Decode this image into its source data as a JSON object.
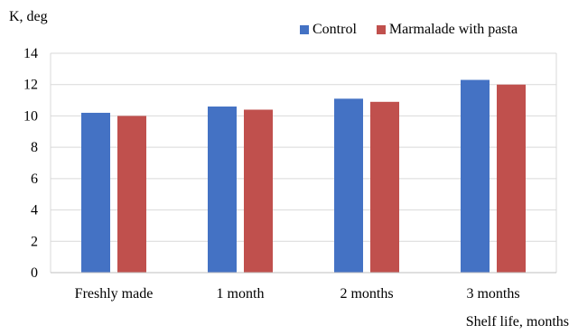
{
  "chart_data": {
    "type": "bar",
    "ylabel": "K, deg",
    "xlabel": "Shelf life, months",
    "categories": [
      "Freshly made",
      "1 month",
      "2 months",
      "3 months"
    ],
    "series": [
      {
        "name": "Control",
        "color": "#4472c4",
        "values": [
          10.2,
          10.6,
          11.1,
          12.3
        ]
      },
      {
        "name": "Marmalade with pasta",
        "color": "#c0504d",
        "values": [
          10.0,
          10.4,
          10.9,
          12.0
        ]
      }
    ],
    "ylim": [
      0,
      14
    ],
    "yticks": [
      "0",
      "2",
      "4",
      "6",
      "8",
      "10",
      "12",
      "14"
    ],
    "grid": true,
    "legend_position": "top-right"
  }
}
